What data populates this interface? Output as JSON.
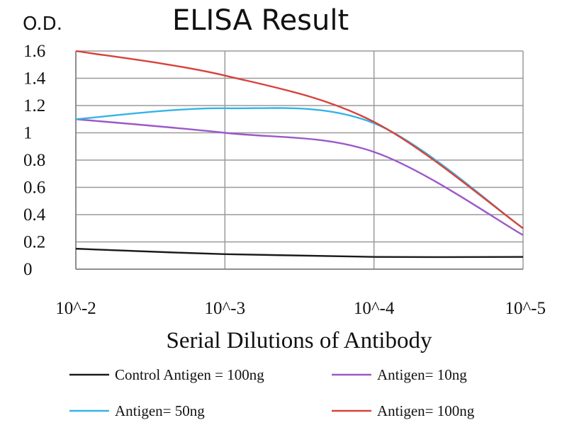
{
  "chart_data": {
    "type": "line",
    "title": "ELISA Result",
    "ylabel": "O.D.",
    "xlabel": "Serial Dilutions of Antibody",
    "categories": [
      "10^-2",
      "10^-3",
      "10^-4",
      "10^-5"
    ],
    "yticks": [
      "1.6",
      "1.4",
      "1.2",
      "1",
      "0.8",
      "0.6",
      "0.4",
      "0.2",
      "0"
    ],
    "ylim": [
      0,
      1.6
    ],
    "grid": true,
    "legend_position": "bottom",
    "series": [
      {
        "name": "Control Antigen = 100ng",
        "color": "#1a1a1a",
        "values": [
          0.15,
          0.11,
          0.09,
          0.09
        ]
      },
      {
        "name": "Antigen= 10ng",
        "color": "#9b59c9",
        "values": [
          1.1,
          1.0,
          0.86,
          0.25
        ]
      },
      {
        "name": "Antigen= 50ng",
        "color": "#35b4e6",
        "values": [
          1.1,
          1.18,
          1.07,
          0.3
        ]
      },
      {
        "name": "Antigen= 100ng",
        "color": "#d9423a",
        "values": [
          1.6,
          1.42,
          1.08,
          0.3
        ]
      }
    ]
  }
}
